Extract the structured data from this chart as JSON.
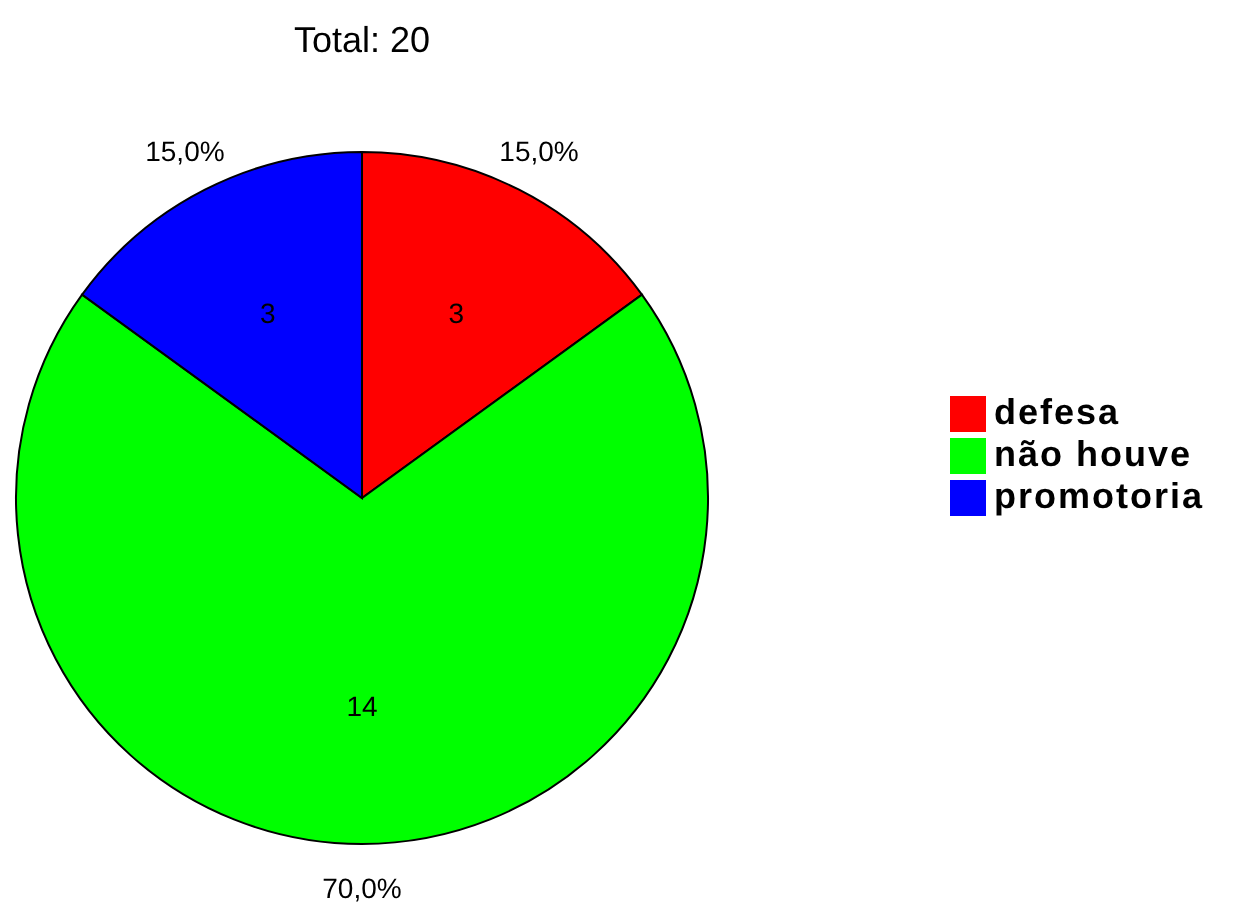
{
  "chart_data": {
    "type": "pie",
    "title": "Total: 20",
    "categories": [
      "defesa",
      "não houve",
      "promotoria"
    ],
    "values": [
      3,
      14,
      3
    ],
    "data_labels": true,
    "colors": [
      "#ff0000",
      "#00ff00",
      "#0000ff"
    ],
    "annotations": [
      {
        "text": "15,0%",
        "x": "defesa"
      },
      {
        "text": "70,0%",
        "x": "não houve"
      },
      {
        "text": "15,0%",
        "x": "promotoria"
      }
    ],
    "legend": "right"
  }
}
